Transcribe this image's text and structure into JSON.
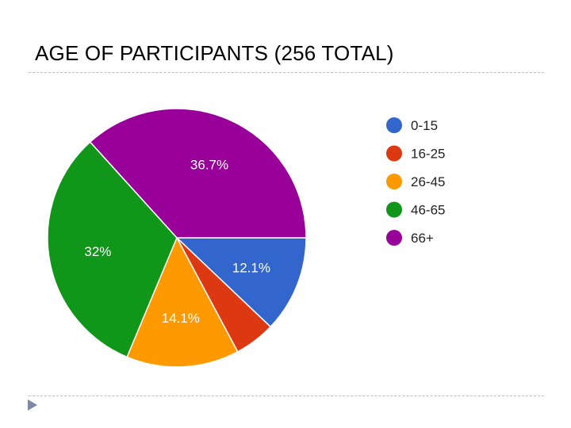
{
  "slide": {
    "title": "AGE OF PARTICIPANTS (256 TOTAL)"
  },
  "chart_data": {
    "type": "pie",
    "title": "",
    "categories": [
      "0-15",
      "16-25",
      "26-45",
      "46-65",
      "66+"
    ],
    "values": [
      12.1,
      5.1,
      14.1,
      32.0,
      36.7
    ],
    "value_labels": [
      "12.1%",
      "",
      "14.1%",
      "32%",
      "36.7%"
    ],
    "colors": [
      "#3366cc",
      "#dc3912",
      "#ff9900",
      "#109618",
      "#990099"
    ],
    "start_angle_deg": 90,
    "direction": "clockwise",
    "legend_position": "right"
  },
  "icons": {
    "bullet": "triangle-bullet-icon"
  }
}
